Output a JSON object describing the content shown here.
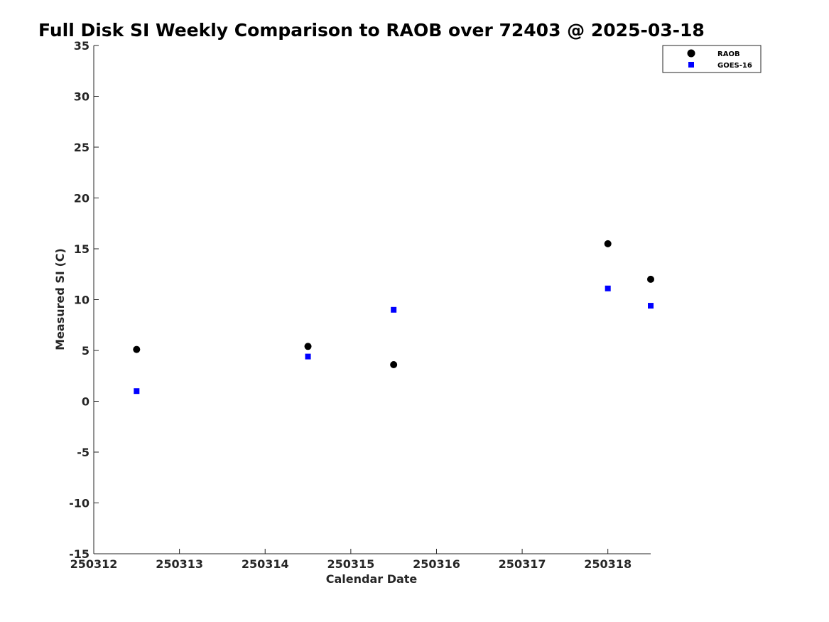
{
  "chart_data": {
    "type": "scatter",
    "title": "Full Disk SI Weekly Comparison to RAOB over 72403 @ 2025-03-18",
    "xlabel": "Calendar Date",
    "ylabel": "Measured SI (C)",
    "xlim": [
      250312,
      250318.5
    ],
    "ylim": [
      -15,
      35
    ],
    "x_ticks": [
      250312,
      250313,
      250314,
      250315,
      250316,
      250317,
      250318
    ],
    "x_tick_labels": [
      "250312",
      "250313",
      "250314",
      "250315",
      "250316",
      "250317",
      "250318"
    ],
    "y_ticks": [
      -15,
      -10,
      -5,
      0,
      5,
      10,
      15,
      20,
      25,
      30,
      35
    ],
    "y_tick_labels": [
      "-15",
      "-10",
      "-5",
      "0",
      "5",
      "10",
      "15",
      "20",
      "25",
      "30",
      "35"
    ],
    "grid": false,
    "legend_position": "top-right",
    "series": [
      {
        "name": "RAOB",
        "marker": "circle",
        "color": "#000000",
        "points": [
          {
            "x": 250312.5,
            "y": 5.1
          },
          {
            "x": 250314.5,
            "y": 5.4
          },
          {
            "x": 250315.5,
            "y": 3.6
          },
          {
            "x": 250318.0,
            "y": 15.5
          },
          {
            "x": 250318.5,
            "y": 12.0
          }
        ]
      },
      {
        "name": "GOES-16",
        "marker": "square",
        "color": "#0000ff",
        "points": [
          {
            "x": 250312.5,
            "y": 1.0
          },
          {
            "x": 250314.5,
            "y": 4.4
          },
          {
            "x": 250315.5,
            "y": 9.0
          },
          {
            "x": 250318.0,
            "y": 11.1
          },
          {
            "x": 250318.5,
            "y": 9.4
          }
        ]
      }
    ]
  }
}
